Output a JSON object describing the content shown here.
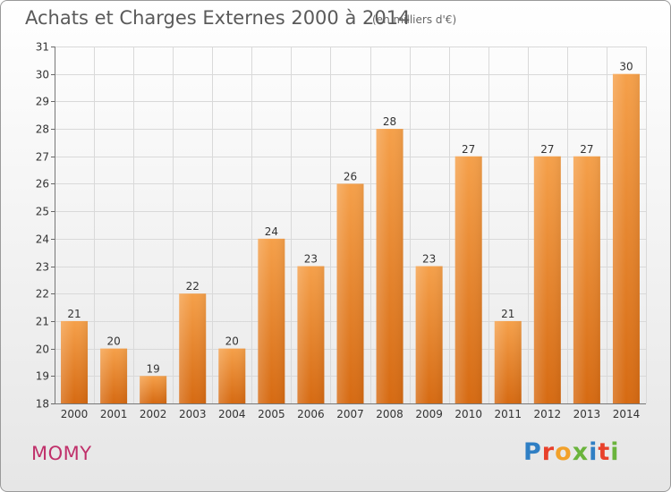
{
  "header": {
    "title": "Achats et Charges Externes 2000 à 2014",
    "subtitle": "(en milliers d'€)"
  },
  "footer": {
    "commune": "MOMY",
    "logo_text": "Proxiti"
  },
  "colors": {
    "bar_top": "#f5a04a",
    "bar_bottom": "#d66a12",
    "grid": "#d9d9d9",
    "commune": "#c0306a",
    "logo": [
      "#2f7fc4",
      "#e8402a",
      "#f2a12a",
      "#6ab43c",
      "#2f7fc4",
      "#e8402a",
      "#6ab43c"
    ]
  },
  "chart_data": {
    "type": "bar",
    "title": "Achats et Charges Externes 2000 à 2014",
    "subtitle": "(en milliers d'€)",
    "xlabel": "",
    "ylabel": "",
    "categories": [
      "2000",
      "2001",
      "2002",
      "2003",
      "2004",
      "2005",
      "2006",
      "2007",
      "2008",
      "2009",
      "2010",
      "2011",
      "2012",
      "2013",
      "2014"
    ],
    "values": [
      21,
      20,
      19,
      22,
      20,
      24,
      23,
      26,
      28,
      23,
      27,
      21,
      27,
      27,
      30
    ],
    "ylim": [
      18,
      31
    ],
    "yticks": [
      18,
      19,
      20,
      21,
      22,
      23,
      24,
      25,
      26,
      27,
      28,
      29,
      30,
      31
    ],
    "grid": true,
    "legend": "none"
  }
}
